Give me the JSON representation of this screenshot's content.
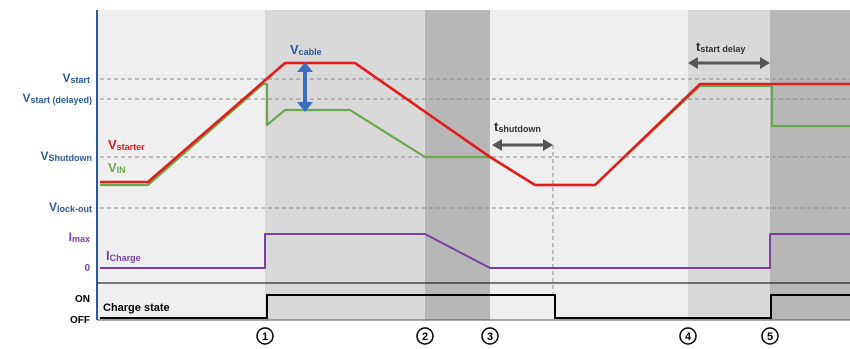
{
  "colors": {
    "starter": "#e31b1b",
    "vin": "#6aa84f",
    "charge_current": "#7a3fa0",
    "state": "#000000",
    "label_blue": "#2a5a9a",
    "arrow_blue": "#3a6fc0",
    "arrow_grey": "#555555",
    "band_light": "#efefef",
    "band_mid": "#d9d9d9",
    "band_dark": "#b7b7b7"
  },
  "axis_labels": {
    "v_start": {
      "main": "V",
      "sub": "start"
    },
    "v_start_delayed": {
      "main": "V",
      "sub": "start (delayed)"
    },
    "v_shutdown": {
      "main": "V",
      "sub": "Shutdown"
    },
    "v_lockout": {
      "main": "V",
      "sub": "lock-out"
    },
    "i_max": {
      "main": "I",
      "sub": "max"
    },
    "zero": "0",
    "on": "ON",
    "off": "OFF"
  },
  "curve_labels": {
    "v_starter": {
      "main": "V",
      "sub": "starter"
    },
    "v_in": {
      "main": "V",
      "sub": "IN"
    },
    "i_charge": {
      "main": "I",
      "sub": "Charge"
    },
    "charge_state": "Charge state"
  },
  "annotations": {
    "v_cable": {
      "main": "V",
      "sub": "cable"
    },
    "t_shutdown": {
      "main": "t",
      "sub": "shutdown"
    },
    "t_start_delay": {
      "main": "t",
      "sub": "start delay"
    }
  },
  "events": [
    "1",
    "2",
    "3",
    "4",
    "5"
  ]
}
